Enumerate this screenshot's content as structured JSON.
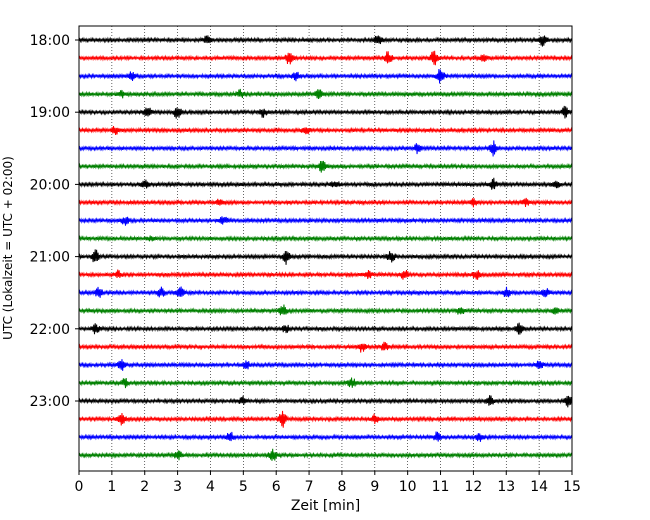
{
  "chart_data": {
    "type": "line",
    "subtype": "helicorder",
    "title": "",
    "xlabel": "Zeit  [min]",
    "ylabel": "UTC (Lokalzeit = UTC + 02:00)",
    "xlim": [
      0,
      15
    ],
    "x_ticks": [
      "0",
      "1",
      "2",
      "3",
      "4",
      "5",
      "6",
      "7",
      "8",
      "9",
      "10",
      "11",
      "12",
      "13",
      "14",
      "15"
    ],
    "y_ticks": [
      "18:00",
      "19:00",
      "20:00",
      "21:00",
      "22:00",
      "23:00"
    ],
    "minutes_per_line": 15,
    "grid": {
      "vertical_dotted": true
    },
    "trace_color_cycle": [
      "#000000",
      "#ff0000",
      "#0000ff",
      "#008000"
    ],
    "traces": [
      {
        "start": "18:00",
        "color": "#000000",
        "events": [
          [
            3.9,
            0.5
          ],
          [
            9.1,
            0.6
          ],
          [
            14.1,
            0.7
          ]
        ]
      },
      {
        "start": "18:15",
        "color": "#ff0000",
        "events": [
          [
            6.4,
            0.8
          ],
          [
            9.4,
            0.8
          ],
          [
            10.8,
            0.9
          ],
          [
            12.3,
            0.6
          ]
        ]
      },
      {
        "start": "18:30",
        "color": "#0000ff",
        "events": [
          [
            1.6,
            0.6
          ],
          [
            6.6,
            0.5
          ],
          [
            11.0,
            0.9
          ]
        ]
      },
      {
        "start": "18:45",
        "color": "#008000",
        "events": [
          [
            1.3,
            0.4
          ],
          [
            4.9,
            0.5
          ],
          [
            7.3,
            0.5
          ]
        ]
      },
      {
        "start": "19:00",
        "color": "#000000",
        "events": [
          [
            2.1,
            0.6
          ],
          [
            3.0,
            0.8
          ],
          [
            5.6,
            0.6
          ],
          [
            14.8,
            0.7
          ]
        ]
      },
      {
        "start": "19:15",
        "color": "#ff0000",
        "events": [
          [
            1.1,
            0.5
          ],
          [
            6.9,
            0.6
          ]
        ]
      },
      {
        "start": "19:30",
        "color": "#0000ff",
        "events": [
          [
            10.3,
            0.6
          ],
          [
            12.6,
            0.9
          ]
        ]
      },
      {
        "start": "19:45",
        "color": "#008000",
        "events": [
          [
            7.4,
            0.7
          ]
        ]
      },
      {
        "start": "20:00",
        "color": "#000000",
        "events": [
          [
            2.0,
            0.5
          ],
          [
            7.8,
            0.5
          ],
          [
            12.6,
            0.7
          ],
          [
            14.5,
            0.6
          ]
        ]
      },
      {
        "start": "20:15",
        "color": "#ff0000",
        "events": [
          [
            4.3,
            0.5
          ],
          [
            12.0,
            0.5
          ],
          [
            13.6,
            0.4
          ]
        ]
      },
      {
        "start": "20:30",
        "color": "#0000ff",
        "events": [
          [
            1.4,
            0.5
          ],
          [
            4.4,
            0.5
          ]
        ]
      },
      {
        "start": "20:45",
        "color": "#008000",
        "events": [
          [
            2.2,
            0.3
          ]
        ]
      },
      {
        "start": "21:00",
        "color": "#000000",
        "events": [
          [
            0.5,
            0.8
          ],
          [
            6.3,
            0.9
          ],
          [
            9.5,
            0.7
          ]
        ]
      },
      {
        "start": "21:15",
        "color": "#ff0000",
        "events": [
          [
            1.2,
            0.5
          ],
          [
            8.8,
            0.5
          ],
          [
            9.9,
            0.6
          ],
          [
            12.1,
            0.6
          ]
        ]
      },
      {
        "start": "21:30",
        "color": "#0000ff",
        "events": [
          [
            0.6,
            0.6
          ],
          [
            2.5,
            0.6
          ],
          [
            3.1,
            0.9
          ],
          [
            13.0,
            0.6
          ],
          [
            14.2,
            0.5
          ]
        ]
      },
      {
        "start": "21:45",
        "color": "#008000",
        "events": [
          [
            6.2,
            0.7
          ],
          [
            11.6,
            0.5
          ],
          [
            14.5,
            0.5
          ]
        ]
      },
      {
        "start": "22:00",
        "color": "#000000",
        "events": [
          [
            0.5,
            0.6
          ],
          [
            6.3,
            0.5
          ],
          [
            13.4,
            0.7
          ]
        ]
      },
      {
        "start": "22:15",
        "color": "#ff0000",
        "events": [
          [
            8.6,
            0.6
          ],
          [
            9.3,
            0.5
          ]
        ]
      },
      {
        "start": "22:30",
        "color": "#0000ff",
        "events": [
          [
            1.3,
            0.7
          ],
          [
            5.1,
            0.5
          ],
          [
            14.0,
            0.5
          ]
        ]
      },
      {
        "start": "22:45",
        "color": "#008000",
        "events": [
          [
            1.4,
            0.5
          ],
          [
            8.3,
            0.6
          ]
        ]
      },
      {
        "start": "23:00",
        "color": "#000000",
        "events": [
          [
            5.0,
            0.5
          ],
          [
            12.5,
            0.6
          ],
          [
            14.9,
            0.7
          ]
        ]
      },
      {
        "start": "23:15",
        "color": "#ff0000",
        "events": [
          [
            1.3,
            0.7
          ],
          [
            6.2,
            1.0
          ],
          [
            9.0,
            0.6
          ]
        ]
      },
      {
        "start": "23:30",
        "color": "#0000ff",
        "events": [
          [
            4.6,
            0.6
          ],
          [
            10.9,
            0.6
          ],
          [
            12.2,
            0.5
          ]
        ]
      },
      {
        "start": "23:45",
        "color": "#008000",
        "events": [
          [
            3.0,
            0.6
          ],
          [
            5.9,
            0.7
          ]
        ]
      }
    ]
  }
}
